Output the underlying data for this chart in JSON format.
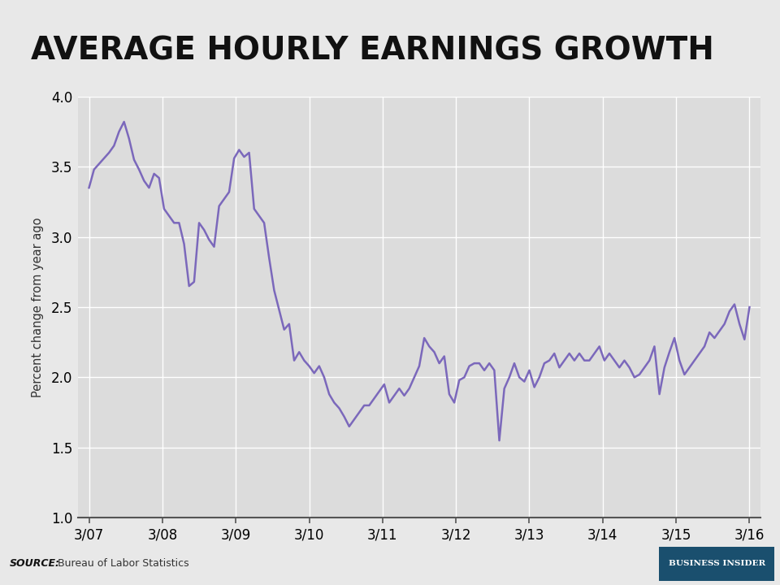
{
  "title": "AVERAGE HOURLY EARNINGS GROWTH",
  "ylabel": "Percent change from year ago",
  "line_color": "#7B68BB",
  "bg_color": "#e8e8e8",
  "plot_bg_color": "#dcdcdc",
  "grid_color": "#ffffff",
  "footer_bg": "#c0c0c0",
  "ylim": [
    1.0,
    4.0
  ],
  "yticks": [
    1.0,
    1.5,
    2.0,
    2.5,
    3.0,
    3.5,
    4.0
  ],
  "xtick_labels": [
    "3/07",
    "3/08",
    "3/09",
    "3/10",
    "3/11",
    "3/12",
    "3/13",
    "3/14",
    "3/15",
    "3/16"
  ],
  "source_bold": "SOURCE:",
  "source_normal": " Bureau of Labor Statistics",
  "bi_text": "BUSINESS INSIDER",
  "bi_bg": "#1a4f6e",
  "line_width": 1.8,
  "values": [
    3.35,
    3.48,
    3.52,
    3.56,
    3.6,
    3.65,
    3.75,
    3.82,
    3.7,
    3.55,
    3.48,
    3.4,
    3.35,
    3.45,
    3.42,
    3.2,
    3.15,
    3.1,
    3.1,
    2.95,
    2.65,
    2.68,
    3.1,
    3.05,
    2.98,
    2.93,
    3.22,
    3.27,
    3.32,
    3.56,
    3.62,
    3.57,
    3.6,
    3.2,
    3.15,
    3.1,
    2.85,
    2.62,
    2.48,
    2.34,
    2.38,
    2.12,
    2.18,
    2.12,
    2.08,
    2.03,
    2.08,
    2.0,
    1.88,
    1.82,
    1.78,
    1.72,
    1.65,
    1.7,
    1.75,
    1.8,
    1.8,
    1.85,
    1.9,
    1.95,
    1.82,
    1.87,
    1.92,
    1.87,
    1.92,
    2.0,
    2.08,
    2.28,
    2.22,
    2.18,
    2.1,
    2.15,
    1.88,
    1.82,
    1.98,
    2.0,
    2.08,
    2.1,
    2.1,
    2.05,
    2.1,
    2.05,
    1.55,
    1.92,
    2.0,
    2.1,
    2.0,
    1.97,
    2.05,
    1.93,
    2.0,
    2.1,
    2.12,
    2.17,
    2.07,
    2.12,
    2.17,
    2.12,
    2.17,
    2.12,
    2.12,
    2.17,
    2.22,
    2.12,
    2.17,
    2.12,
    2.07,
    2.12,
    2.07,
    2.0,
    2.02,
    2.07,
    2.12,
    2.22,
    1.88,
    2.07,
    2.18,
    2.28,
    2.12,
    2.02,
    2.07,
    2.12,
    2.17,
    2.22,
    2.32,
    2.28,
    2.33,
    2.38,
    2.47,
    2.52,
    2.38,
    2.27,
    2.5
  ]
}
